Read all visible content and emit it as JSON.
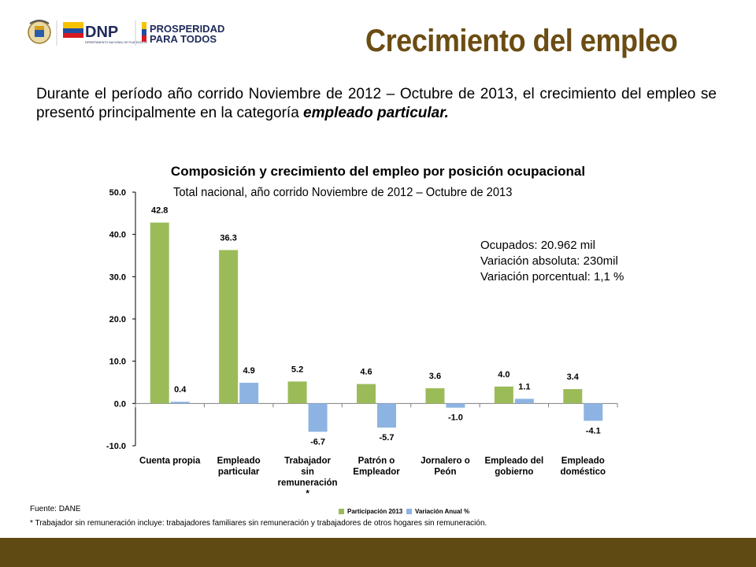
{
  "header": {
    "dnp_logo_text": "DNP",
    "dnp_logo_subtext": "DEPARTAMENTO NACIONAL DE PLANEACIÓN",
    "slogan_line1": "PROSPERIDAD",
    "slogan_line2": "PARA TODOS",
    "title": "Crecimiento del empleo"
  },
  "intro": {
    "text_before": "Durante el período año corrido  Noviembre de 2012 – Octubre de 2013, el crecimiento del empleo se presentó principalmente en la categoría ",
    "emphasis": "empleado particular."
  },
  "stats": {
    "ocupados": "Ocupados: 20.962 mil",
    "variacion_absoluta": "Variación absoluta: 230mil",
    "variacion_porcentual": "Variación porcentual:  1,1 %"
  },
  "footer": {
    "source": "Fuente: DANE",
    "footnote": "* Trabajador sin remuneración incluye: trabajadores familiares sin remuneración y trabajadores de otros hogares sin remuneración."
  },
  "colors": {
    "title": "#6b4c12",
    "series_participacion": "#9bbb59",
    "series_variacion": "#8db3e2",
    "footer_band": "#5e4a12"
  },
  "chart_data": {
    "type": "bar",
    "title": "Composición y crecimiento del empleo por posición ocupacional",
    "subtitle": "Total nacional, año corrido  Noviembre de 2012 – Octubre  de 2013",
    "categories": [
      [
        "Cuenta propia"
      ],
      [
        "Empleado",
        "particular"
      ],
      [
        "Trabajador",
        "sin",
        "remuneración",
        "*"
      ],
      [
        "Patrón o",
        "Empleador"
      ],
      [
        "Jornalero o",
        "Peón"
      ],
      [
        "Empleado del",
        "gobierno"
      ],
      [
        "Empleado",
        "doméstico"
      ]
    ],
    "series": [
      {
        "name": "Participación 2013",
        "values": [
          42.8,
          36.3,
          5.2,
          4.6,
          3.6,
          4.0,
          3.4
        ]
      },
      {
        "name": "Variación Anual %",
        "values": [
          0.4,
          4.9,
          -6.7,
          -5.7,
          -1.0,
          1.1,
          -4.1
        ]
      }
    ],
    "yticks": [
      "50.0",
      "40.0",
      "30.0",
      "20.0",
      "10.0",
      "0.0",
      "-10.0"
    ],
    "ylim": [
      -10,
      50
    ],
    "grid": false,
    "legend_position": "bottom"
  }
}
